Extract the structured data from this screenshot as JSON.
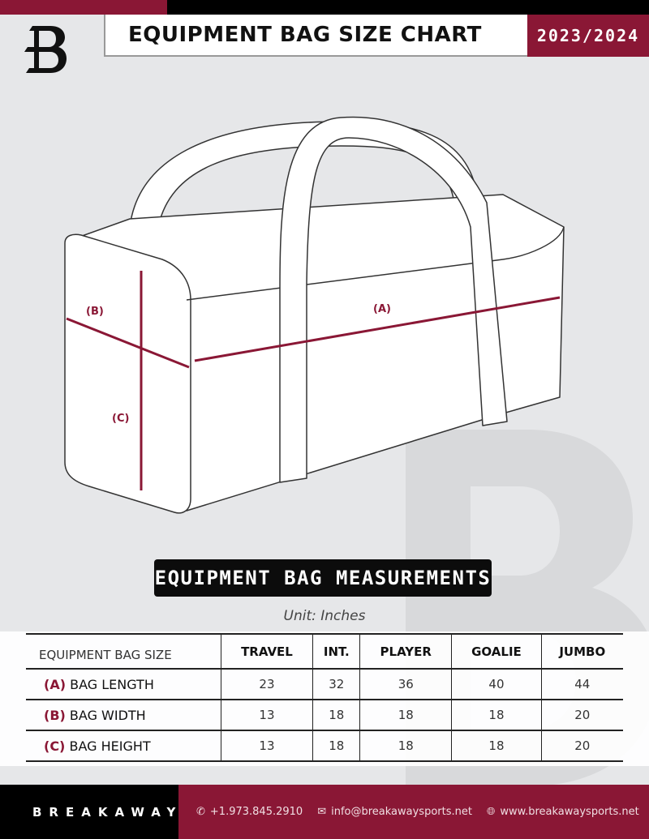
{
  "header": {
    "title": "EQUIPMENT BAG SIZE CHART",
    "season": "2023/2024",
    "logo": "B"
  },
  "diagram": {
    "labels": {
      "a": "(A)",
      "b": "(B)",
      "c": "(C)"
    },
    "accent": "#8a1735"
  },
  "measurements": {
    "heading": "EQUIPMENT BAG MEASUREMENTS",
    "unit": "Unit: Inches"
  },
  "table": {
    "corner": "EQUIPMENT BAG SIZE",
    "columns": [
      "TRAVEL",
      "INT.",
      "PLAYER",
      "GOALIE",
      "JUMBO"
    ],
    "rows": [
      {
        "key": "(A)",
        "label": "BAG LENGTH",
        "values": [
          "23",
          "32",
          "36",
          "40",
          "44"
        ]
      },
      {
        "key": "(B)",
        "label": "BAG WIDTH",
        "values": [
          "13",
          "18",
          "18",
          "18",
          "20"
        ]
      },
      {
        "key": "(C)",
        "label": "BAG HEIGHT",
        "values": [
          "13",
          "18",
          "18",
          "18",
          "20"
        ]
      }
    ]
  },
  "footer": {
    "brand": "BREAKAWAY",
    "phone": "+1.973.845.2910",
    "email": "info@breakawaysports.net",
    "website": "www.breakawaysports.net",
    "icons": [
      "phone-icon",
      "mail-icon",
      "globe-icon"
    ]
  },
  "colors": {
    "maroon": "#8a1735",
    "black": "#000000",
    "background": "#e6e7e9"
  }
}
